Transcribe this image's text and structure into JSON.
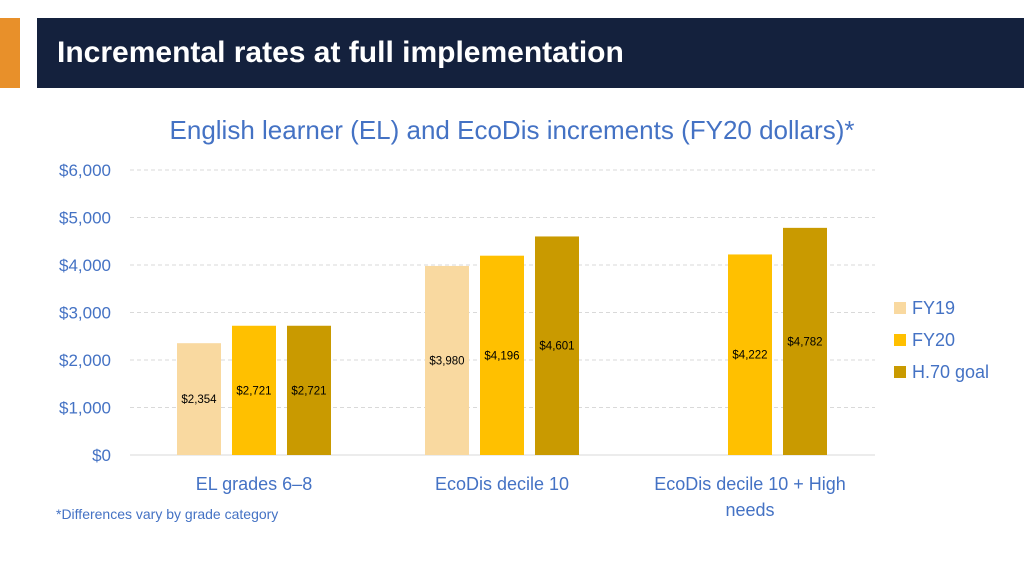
{
  "header": {
    "title": "Incremental rates at full implementation"
  },
  "footnote": "*Differences vary by grade category",
  "colors": {
    "accent": "#E8902A",
    "header_bg": "#14213D",
    "text_blue": "#4472C4",
    "FY19": "#F9D9A0",
    "FY20": "#FFC000",
    "H70": "#C99A00"
  },
  "chart_data": {
    "type": "bar",
    "title": "English learner (EL) and EcoDis increments (FY20 dollars)*",
    "categories": [
      "EL grades 6–8",
      "EcoDis decile 10",
      "EcoDis decile 10 + High needs"
    ],
    "series": [
      {
        "name": "FY19",
        "values": [
          2354,
          3980,
          null
        ],
        "labels": [
          "$2,354",
          "$3,980",
          ""
        ]
      },
      {
        "name": "FY20",
        "values": [
          2721,
          4196,
          4222
        ],
        "labels": [
          "$2,721",
          "$4,196",
          "$4,222"
        ]
      },
      {
        "name": "H.70 goal",
        "values": [
          2721,
          4601,
          4782
        ],
        "labels": [
          "$2,721",
          "$4,601",
          "$4,782"
        ]
      }
    ],
    "ylim": [
      0,
      6000
    ],
    "yticks": [
      0,
      1000,
      2000,
      3000,
      4000,
      5000,
      6000
    ],
    "ytick_labels": [
      "$0",
      "$1,000",
      "$2,000",
      "$3,000",
      "$4,000",
      "$5,000",
      "$6,000"
    ],
    "xlabel": "",
    "ylabel": "",
    "grid": true,
    "legend": "right"
  }
}
